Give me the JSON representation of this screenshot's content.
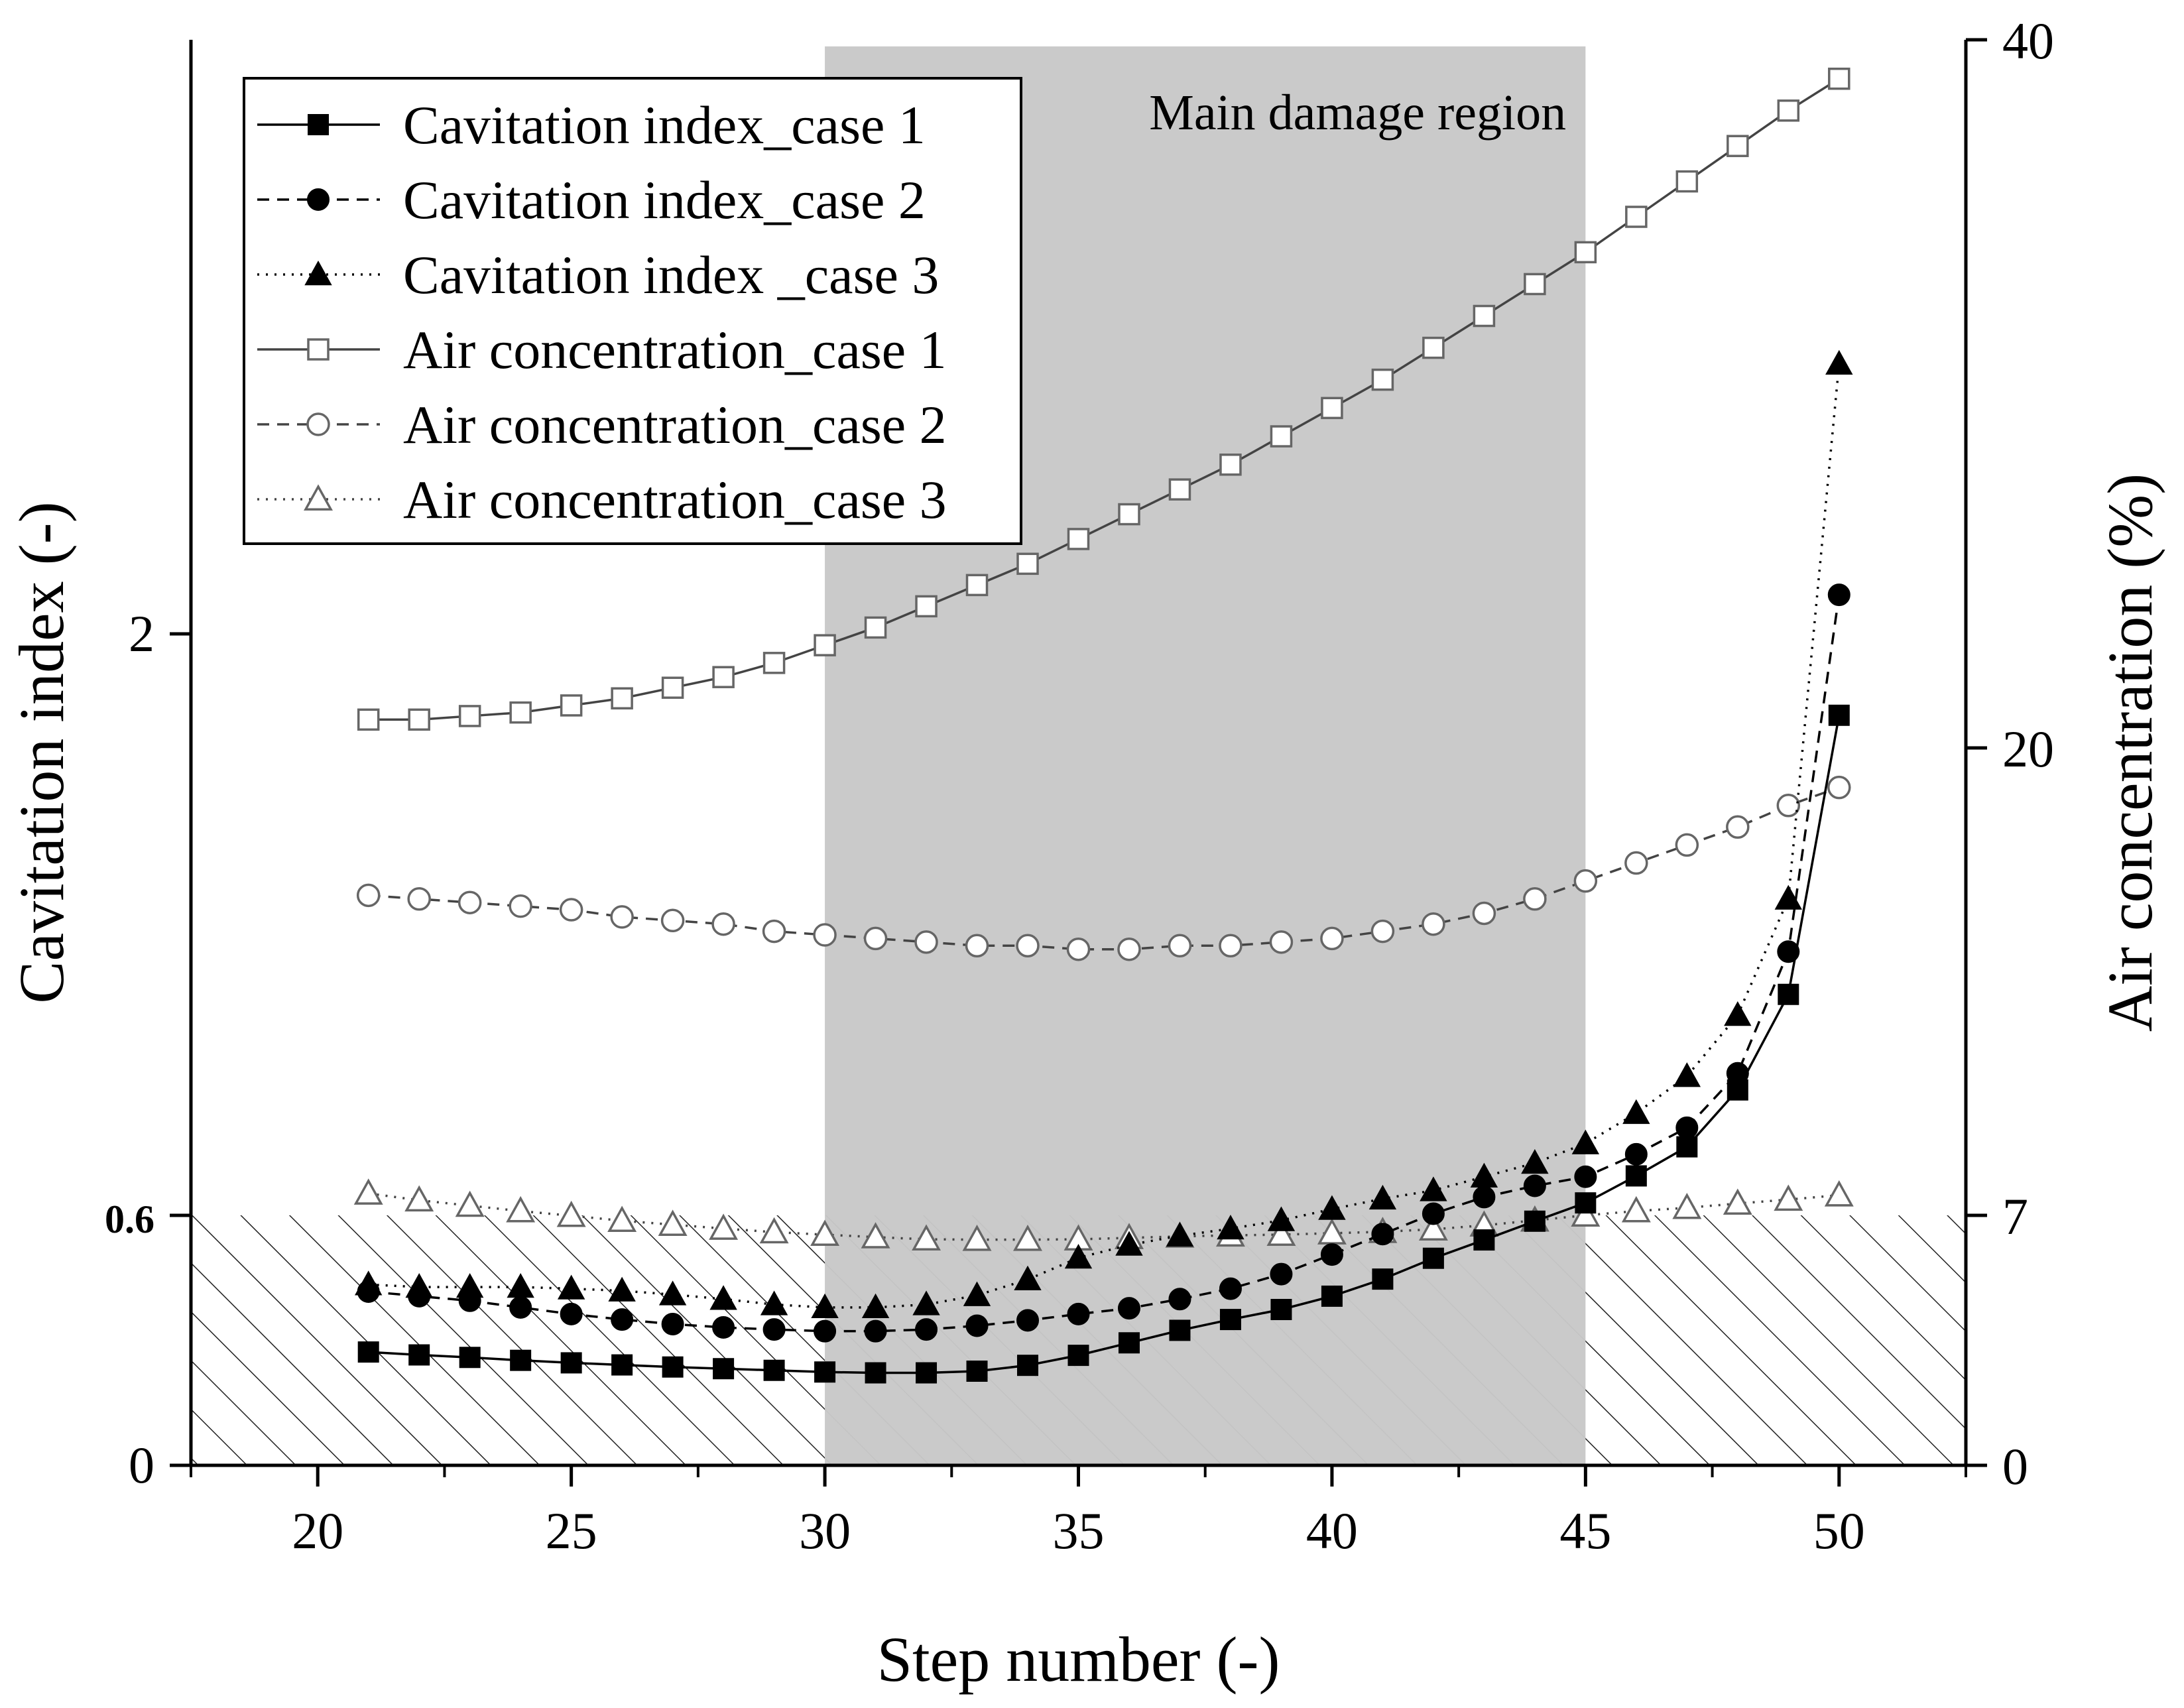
{
  "chart_data": {
    "type": "line",
    "title": "",
    "xlabel": "Step number (-)",
    "ylabel_left": "Cavitation index (-)",
    "ylabel_right": "Air concentration (%)",
    "x_range": [
      17.5,
      52.5
    ],
    "x_ticks": [
      "20",
      "25",
      "30",
      "35",
      "40",
      "45",
      "50"
    ],
    "y_left_ticks": [
      "0",
      "0.6",
      "2"
    ],
    "y_left_breaks": [
      0,
      0.6,
      2
    ],
    "y_right_ticks": [
      "0",
      "7",
      "20",
      "40"
    ],
    "y_right_breaks": [
      0,
      7,
      20,
      40
    ],
    "hatched_region": {
      "description": "Cavitation index below 0.6",
      "y_max": 0.6
    },
    "shaded_region": {
      "label": "Main damage region",
      "x_start": 30,
      "x_end": 45
    },
    "x": [
      21,
      22,
      23,
      24,
      25,
      26,
      27,
      28,
      29,
      30,
      31,
      32,
      33,
      34,
      35,
      36,
      37,
      38,
      39,
      40,
      41,
      42,
      43,
      44,
      45,
      46,
      47,
      48,
      49,
      50
    ],
    "series": [
      {
        "name": "Cavitation index_case 1",
        "axis": "left",
        "marker": "square-filled",
        "line": "solid",
        "values": [
          0.272,
          0.265,
          0.259,
          0.252,
          0.246,
          0.241,
          0.236,
          0.232,
          0.228,
          0.224,
          0.222,
          0.222,
          0.226,
          0.24,
          0.264,
          0.294,
          0.324,
          0.35,
          0.374,
          0.406,
          0.447,
          0.497,
          0.541,
          0.586,
          0.63,
          0.695,
          0.765,
          0.902,
          1.132,
          1.804
        ]
      },
      {
        "name": "Cavitation index_case 2",
        "axis": "left",
        "marker": "circle-filled",
        "line": "dashed",
        "values": [
          0.417,
          0.406,
          0.395,
          0.379,
          0.363,
          0.35,
          0.339,
          0.331,
          0.326,
          0.322,
          0.322,
          0.326,
          0.335,
          0.348,
          0.363,
          0.377,
          0.399,
          0.424,
          0.459,
          0.506,
          0.555,
          0.604,
          0.644,
          0.671,
          0.693,
          0.747,
          0.811,
          0.942,
          1.235,
          2.094
        ]
      },
      {
        "name": "Cavitation index _case 3",
        "axis": "left",
        "marker": "triangle-filled",
        "line": "dotted",
        "values": [
          0.434,
          0.428,
          0.428,
          0.428,
          0.424,
          0.419,
          0.41,
          0.399,
          0.386,
          0.379,
          0.379,
          0.386,
          0.408,
          0.446,
          0.498,
          0.529,
          0.551,
          0.568,
          0.588,
          0.615,
          0.64,
          0.66,
          0.693,
          0.726,
          0.773,
          0.846,
          0.935,
          1.082,
          1.362,
          2.65
        ]
      }
    ],
    "series_right": [
      {
        "name": "Air concentration_case 1",
        "axis": "right",
        "marker": "square-open",
        "line": "solid",
        "values": [
          20.8,
          20.8,
          20.9,
          21.0,
          21.2,
          21.4,
          21.7,
          22.0,
          22.4,
          22.9,
          23.4,
          24.0,
          24.6,
          25.2,
          25.9,
          26.6,
          27.3,
          28.0,
          28.8,
          29.6,
          30.4,
          31.3,
          32.2,
          33.1,
          34.0,
          35.0,
          36.0,
          37.0,
          38.0,
          38.9
        ]
      },
      {
        "name": "Air concentration_case 2",
        "axis": "right",
        "marker": "circle-open",
        "line": "dashed",
        "values": [
          15.9,
          15.8,
          15.7,
          15.6,
          15.5,
          15.3,
          15.2,
          15.1,
          14.9,
          14.8,
          14.7,
          14.6,
          14.5,
          14.5,
          14.4,
          14.4,
          14.5,
          14.5,
          14.6,
          14.7,
          14.9,
          15.1,
          15.4,
          15.8,
          16.3,
          16.8,
          17.3,
          17.8,
          18.4,
          18.9
        ]
      },
      {
        "name": "Air concentration_case 3",
        "axis": "right",
        "marker": "triangle-open",
        "line": "dotted",
        "values": [
          7.61,
          7.42,
          7.27,
          7.12,
          6.99,
          6.85,
          6.74,
          6.63,
          6.53,
          6.46,
          6.39,
          6.33,
          6.32,
          6.32,
          6.33,
          6.37,
          6.41,
          6.44,
          6.46,
          6.5,
          6.54,
          6.61,
          6.72,
          6.86,
          7.0,
          7.12,
          7.21,
          7.33,
          7.44,
          7.56
        ]
      }
    ],
    "legend": {
      "placement": "top-left",
      "entries": [
        "Cavitation index_case 1",
        "Cavitation index_case 2",
        "Cavitation index _case 3",
        "Air concentration_case 1",
        "Air concentration_case 2",
        "Air concentration_case 3"
      ]
    }
  }
}
